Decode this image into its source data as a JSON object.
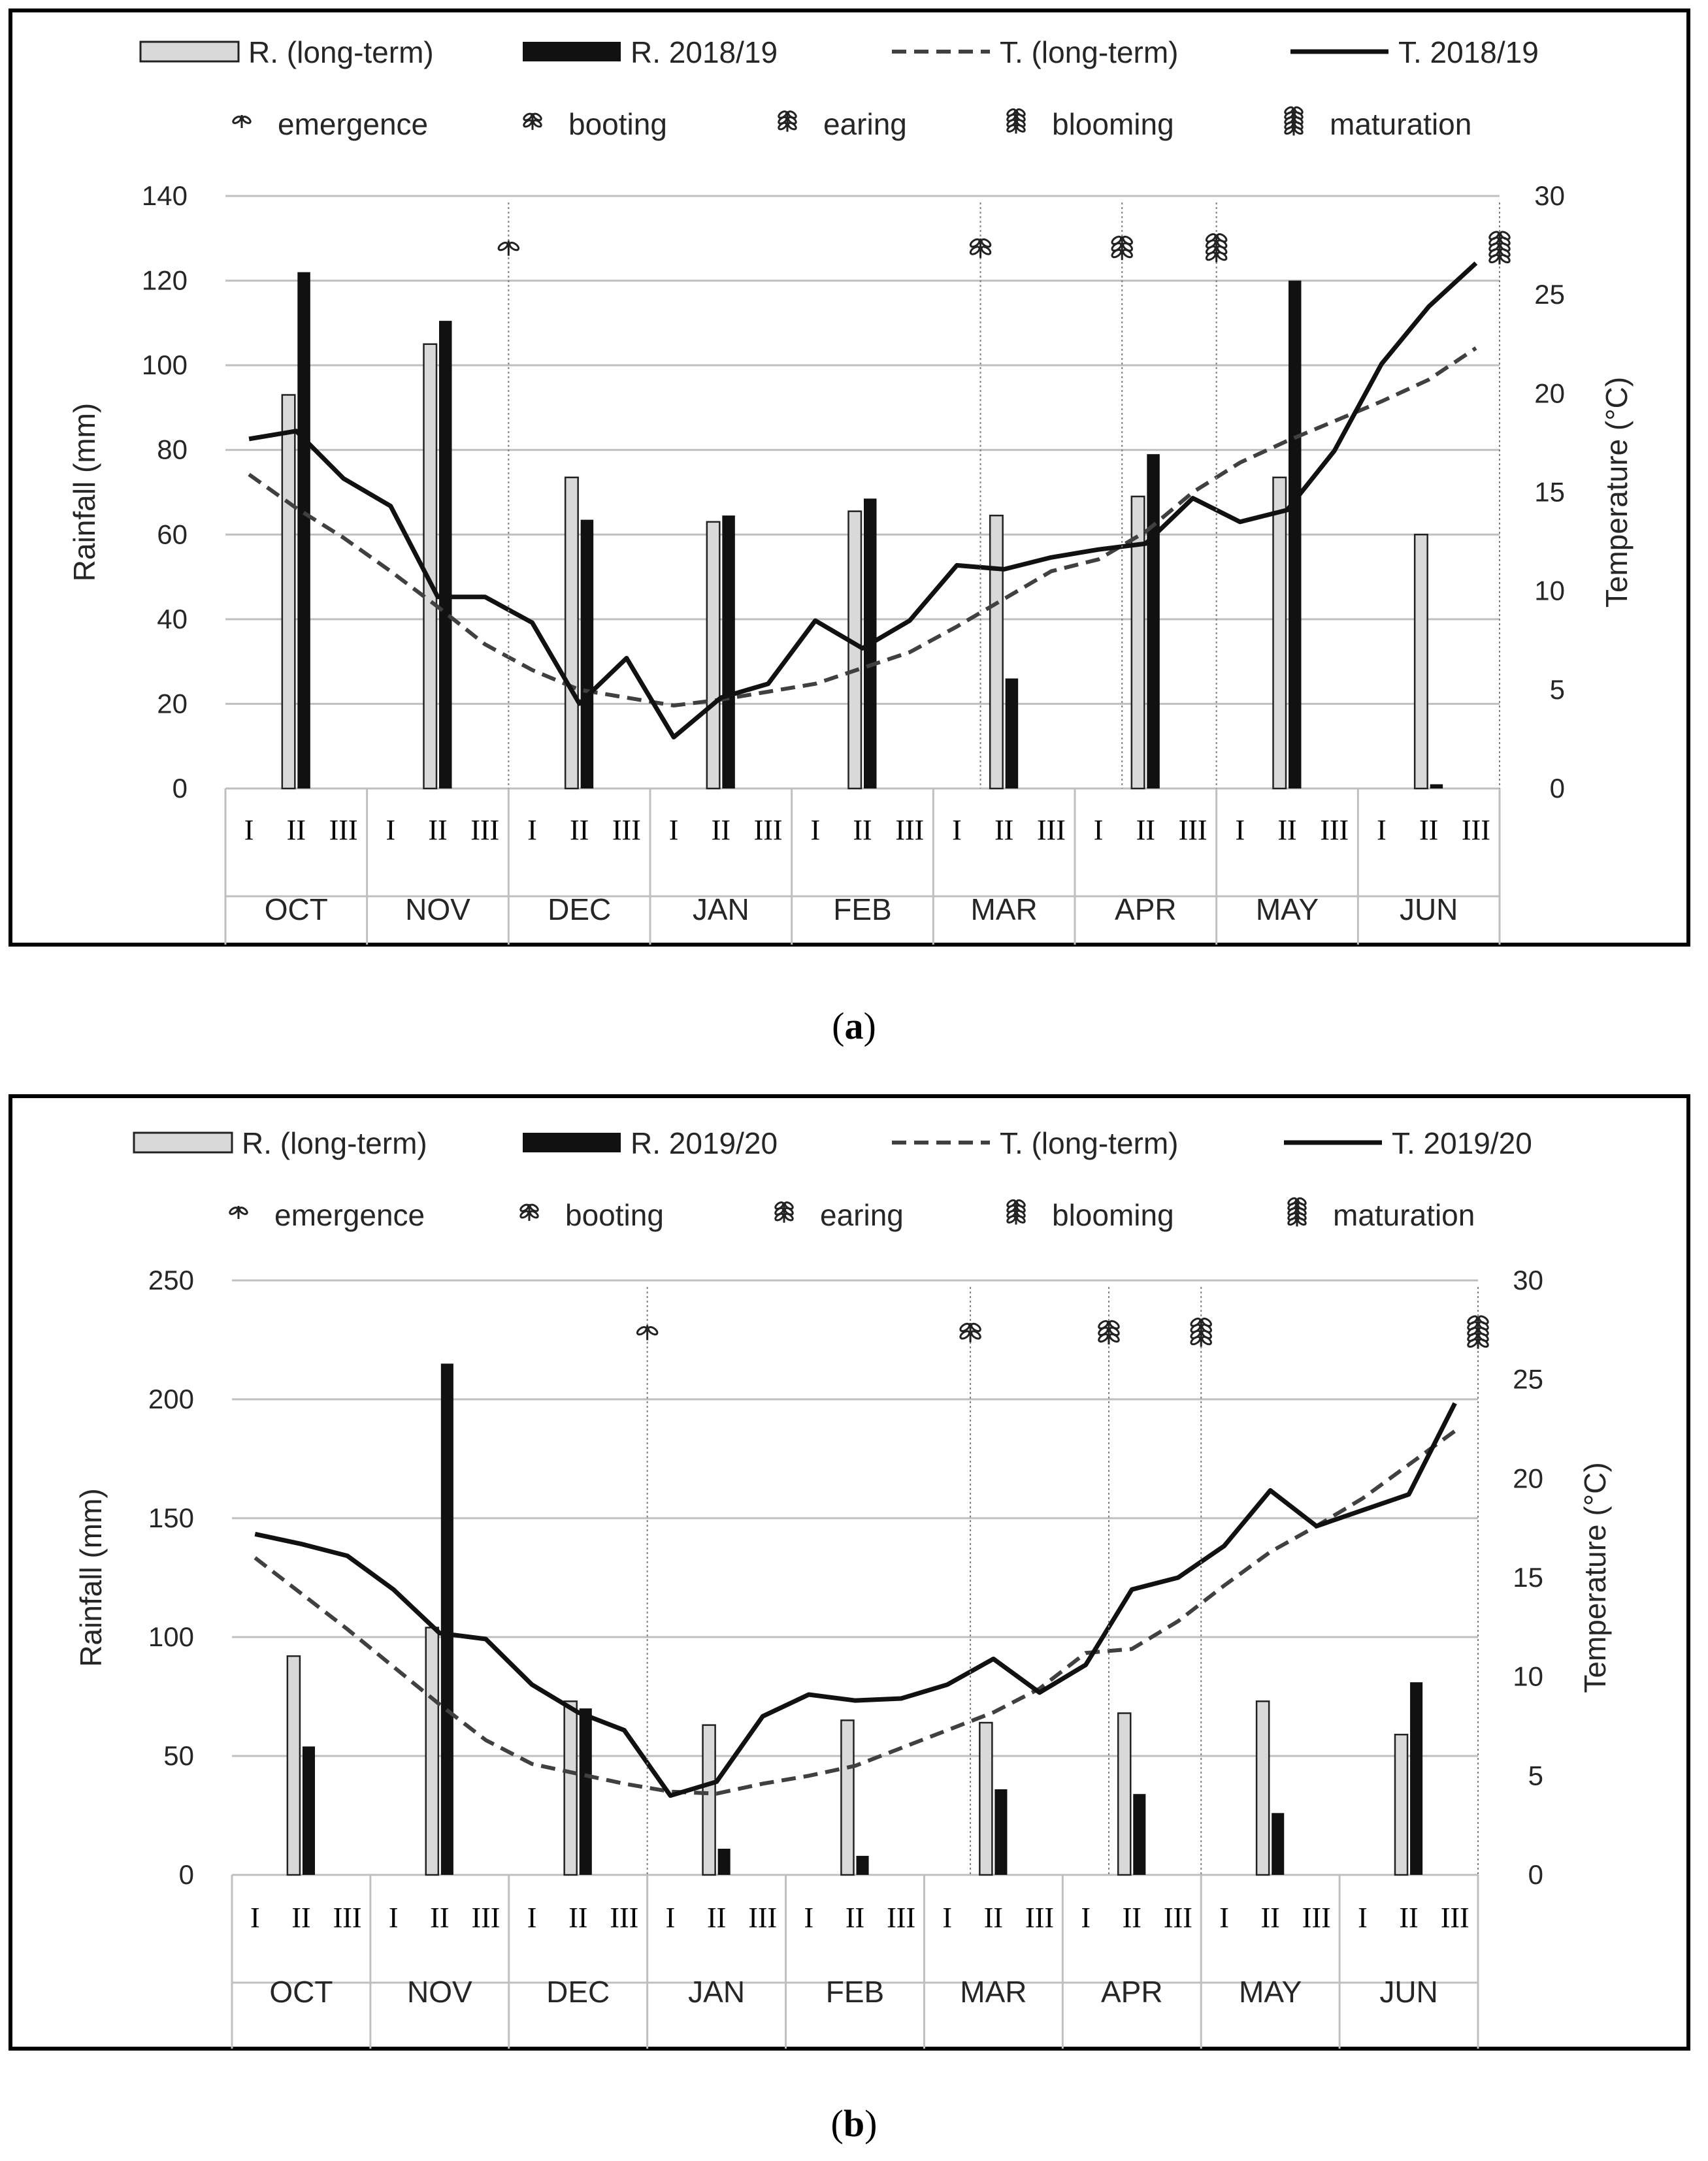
{
  "colors": {
    "frame": "#000000",
    "grid": "#bfbfbf",
    "rain_longterm_fill": "#d9d9d9",
    "rain_season": "#111111",
    "temp_line": "#111111",
    "temp_longterm": "#404040",
    "stage_line": "#7f7f7f",
    "text": "#262626"
  },
  "chart_data": [
    {
      "type": "bar+line",
      "panel_label": "a",
      "caption": {
        "open": "(",
        "letter": "a",
        "close": ")"
      },
      "legend": {
        "rain_longterm": "R. (long-term)",
        "rain_season": "R. 2018/19",
        "temp_longterm": "T. (long-term)",
        "temp_season": "T. 2018/19"
      },
      "stages": {
        "emergence": "emergence",
        "booting": "booting",
        "earing": "earing",
        "blooming": "blooming",
        "maturation": "maturation"
      },
      "y_left": {
        "label": "Rainfall (mm)",
        "min": 0,
        "max": 140,
        "ticks": [
          0,
          20,
          40,
          60,
          80,
          100,
          120,
          140
        ]
      },
      "y_right": {
        "label": "Temperature (°C)",
        "min": 0,
        "max": 30,
        "ticks": [
          0,
          5,
          10,
          15,
          20,
          25,
          30
        ]
      },
      "months": [
        "OCT",
        "NOV",
        "DEC",
        "JAN",
        "FEB",
        "MAR",
        "APR",
        "MAY",
        "JUN"
      ],
      "dekads": [
        "I",
        "II",
        "III"
      ],
      "rain_longterm": [
        93,
        105,
        73.5,
        63,
        65.5,
        64.5,
        69,
        73.5,
        60
      ],
      "rain_season": [
        122,
        110.5,
        63.5,
        64.5,
        68.5,
        26,
        79,
        120,
        1
      ],
      "temp_season": [
        17.7,
        18.1,
        15.7,
        14.3,
        9.7,
        9.7,
        8.4,
        4.3,
        6.6,
        2.6,
        4.6,
        5.3,
        8.5,
        7.1,
        8.5,
        11.3,
        11.1,
        11.7,
        12.1,
        12.4,
        14.7,
        13.5,
        14.1,
        17.1,
        21.5,
        24.4,
        26.6
      ],
      "temp_longterm": [
        15.9,
        14.2,
        12.7,
        11.0,
        9.2,
        7.3,
        6.0,
        5.0,
        4.6,
        4.2,
        4.5,
        4.9,
        5.3,
        6.1,
        6.9,
        8.2,
        9.6,
        11.0,
        11.6,
        13.0,
        15.0,
        16.5,
        17.6,
        18.6,
        19.6,
        20.7,
        22.3
      ],
      "stage_markers": [
        {
          "stage": "emergence",
          "position": 6
        },
        {
          "stage": "booting",
          "position": 16
        },
        {
          "stage": "earing",
          "position": 19
        },
        {
          "stage": "blooming",
          "position": 21
        },
        {
          "stage": "maturation",
          "position": 27
        }
      ]
    },
    {
      "type": "bar+line",
      "panel_label": "b",
      "caption": {
        "open": "(",
        "letter": "b",
        "close": ")"
      },
      "legend": {
        "rain_longterm": "R. (long-term)",
        "rain_season": "R. 2019/20",
        "temp_longterm": "T. (long-term)",
        "temp_season": "T. 2019/20"
      },
      "stages": {
        "emergence": "emergence",
        "booting": "booting",
        "earing": "earing",
        "blooming": "blooming",
        "maturation": "maturation"
      },
      "y_left": {
        "label": "Rainfall (mm)",
        "min": 0,
        "max": 250,
        "ticks": [
          0,
          50,
          100,
          150,
          200,
          250
        ]
      },
      "y_right": {
        "label": "Temperature (°C)",
        "min": 0,
        "max": 30,
        "ticks": [
          0,
          5,
          10,
          15,
          20,
          25,
          30
        ]
      },
      "months": [
        "OCT",
        "NOV",
        "DEC",
        "JAN",
        "FEB",
        "MAR",
        "APR",
        "MAY",
        "JUN"
      ],
      "dekads": [
        "I",
        "II",
        "III"
      ],
      "rain_longterm": [
        92,
        104,
        73,
        63,
        65,
        64,
        68,
        73,
        59
      ],
      "rain_season": [
        54,
        215,
        70,
        11,
        8,
        36,
        34,
        26,
        81
      ],
      "temp_season": [
        17.2,
        16.7,
        16.1,
        14.4,
        12.2,
        11.9,
        9.6,
        8.2,
        7.3,
        4.0,
        4.7,
        8.0,
        9.1,
        8.8,
        8.9,
        9.6,
        10.9,
        9.2,
        10.6,
        14.4,
        15.0,
        16.6,
        19.4,
        17.6,
        18.4,
        19.2,
        23.8
      ],
      "temp_longterm": [
        16.0,
        14.2,
        12.4,
        10.5,
        8.6,
        6.8,
        5.6,
        5.1,
        4.6,
        4.2,
        4.1,
        4.6,
        5.0,
        5.5,
        6.4,
        7.3,
        8.2,
        9.4,
        11.2,
        11.4,
        12.8,
        14.6,
        16.3,
        17.6,
        19.0,
        20.7,
        22.4
      ],
      "stage_markers": [
        {
          "stage": "emergence",
          "position": 9
        },
        {
          "stage": "booting",
          "position": 16
        },
        {
          "stage": "earing",
          "position": 19
        },
        {
          "stage": "blooming",
          "position": 21
        },
        {
          "stage": "maturation",
          "position": 27
        }
      ]
    }
  ]
}
